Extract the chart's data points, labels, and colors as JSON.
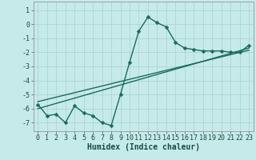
{
  "xlabel": "Humidex (Indice chaleur)",
  "ylabel": "",
  "background_color": "#c6eaea",
  "grid_color": "#afd4d4",
  "line_color": "#1a6b60",
  "xlim": [
    -0.5,
    23.5
  ],
  "ylim": [
    -7.6,
    1.6
  ],
  "yticks": [
    1,
    0,
    -1,
    -2,
    -3,
    -4,
    -5,
    -6,
    -7
  ],
  "xticks": [
    0,
    1,
    2,
    3,
    4,
    5,
    6,
    7,
    8,
    9,
    10,
    11,
    12,
    13,
    14,
    15,
    16,
    17,
    18,
    19,
    20,
    21,
    22,
    23
  ],
  "line1_x": [
    0,
    1,
    2,
    3,
    4,
    5,
    6,
    7,
    8,
    9,
    10,
    11,
    12,
    13,
    14,
    15,
    16,
    17,
    18,
    19,
    20,
    21,
    22,
    23
  ],
  "line1_y": [
    -5.7,
    -6.5,
    -6.4,
    -7.0,
    -5.8,
    -6.3,
    -6.5,
    -7.0,
    -7.2,
    -5.0,
    -2.7,
    -0.5,
    0.5,
    0.1,
    -0.2,
    -1.3,
    -1.7,
    -1.8,
    -1.9,
    -1.9,
    -1.9,
    -2.0,
    -2.0,
    -1.5
  ],
  "line2_x": [
    0,
    23
  ],
  "line2_y": [
    -6.0,
    -1.7
  ],
  "line3_x": [
    0,
    23
  ],
  "line3_y": [
    -5.5,
    -1.85
  ],
  "marker_size": 2.5,
  "linewidth": 1.0,
  "xlabel_fontsize": 7,
  "tick_fontsize": 6
}
